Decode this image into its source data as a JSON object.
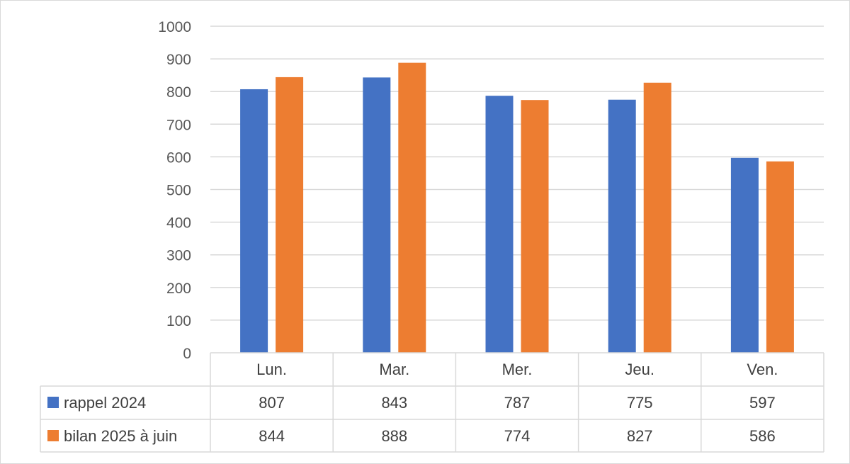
{
  "chart_data": {
    "type": "bar",
    "categories": [
      "Lun.",
      "Mar.",
      "Mer.",
      "Jeu.",
      "Ven."
    ],
    "series": [
      {
        "name": "rappel 2024",
        "color": "#4472c4",
        "values": [
          807,
          843,
          787,
          775,
          597
        ]
      },
      {
        "name": "bilan 2025 à juin",
        "color": "#ed7d31",
        "values": [
          844,
          888,
          774,
          827,
          586
        ]
      }
    ],
    "ylim": [
      0,
      1000
    ],
    "yticks": [
      0,
      100,
      200,
      300,
      400,
      500,
      600,
      700,
      800,
      900,
      1000
    ],
    "grid": true,
    "legend": "data-table",
    "title": "",
    "xlabel": "",
    "ylabel": ""
  }
}
